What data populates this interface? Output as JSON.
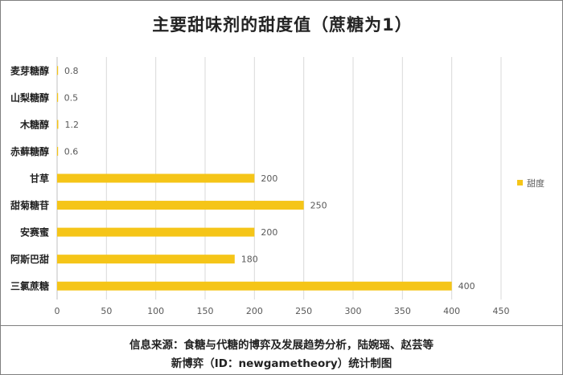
{
  "chart_data": {
    "type": "bar",
    "orientation": "horizontal",
    "title": "主要甜味剂的甜度值（蔗糖为1）",
    "categories": [
      "麦芽糖醇",
      "山梨糖醇",
      "木糖醇",
      "赤藓糖醇",
      "甘草",
      "甜菊糖苷",
      "安赛蜜",
      "阿斯巴甜",
      "三氯蔗糖"
    ],
    "series": [
      {
        "name": "甜度",
        "values": [
          0.8,
          0.5,
          1.2,
          0.6,
          200,
          250,
          200,
          180,
          400
        ],
        "color": "#f5c518"
      }
    ],
    "value_labels": [
      "0.8",
      "0.5",
      "1.2",
      "0.6",
      "200",
      "250",
      "200",
      "180",
      "400"
    ],
    "xlim": [
      0,
      450
    ],
    "xticks": [
      0,
      50,
      100,
      150,
      200,
      250,
      300,
      350,
      400,
      450
    ],
    "grid": true,
    "legend_position": "right"
  },
  "footer": {
    "line1": "信息来源：食糖与代糖的博弈及发展趋势分析，陆婉瑶、赵芸等",
    "line2": "新博弈（ID：newgametheory）统计制图"
  },
  "colors": {
    "bar": "#f5c518",
    "grid": "#d9d9d9",
    "axis": "#bfbfbf",
    "label": "#595959"
  }
}
